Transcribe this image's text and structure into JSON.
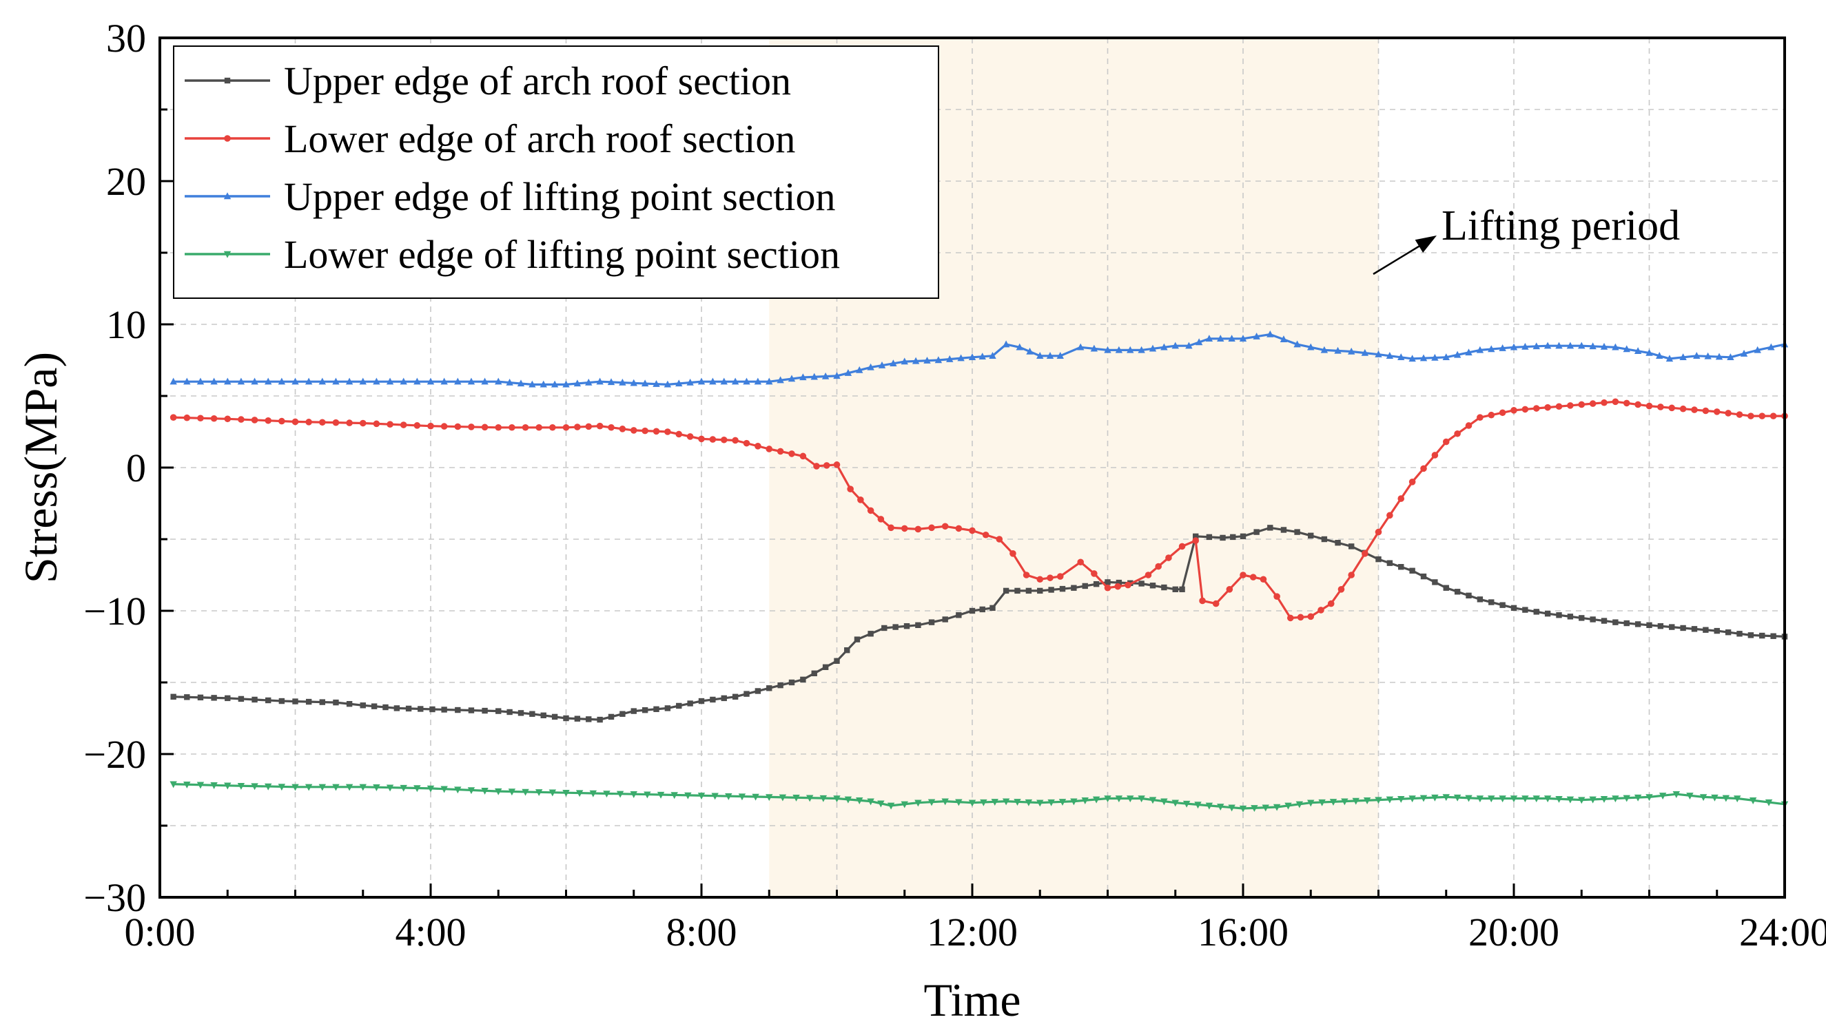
{
  "chart_data": {
    "type": "line",
    "title": "",
    "xlabel": "Time",
    "ylabel": "Stress(MPa)",
    "xlim": [
      0,
      24
    ],
    "ylim": [
      -30,
      30
    ],
    "x_ticks": [
      {
        "value": 0,
        "label": "0:00"
      },
      {
        "value": 4,
        "label": "4:00"
      },
      {
        "value": 8,
        "label": "8:00"
      },
      {
        "value": 12,
        "label": "12:00"
      },
      {
        "value": 16,
        "label": "16:00"
      },
      {
        "value": 20,
        "label": "20:00"
      },
      {
        "value": 24,
        "label": "24:00"
      }
    ],
    "y_ticks": [
      {
        "value": 30,
        "label": "30"
      },
      {
        "value": 20,
        "label": "20"
      },
      {
        "value": 10,
        "label": "10"
      },
      {
        "value": 0,
        "label": "0"
      },
      {
        "value": -10,
        "label": "−10"
      },
      {
        "value": -20,
        "label": "−20"
      },
      {
        "value": -30,
        "label": "−30"
      }
    ],
    "grid": true,
    "legend_position": "top-left",
    "shaded_region": {
      "x_start": 9.0,
      "x_end": 18.0,
      "color": "#fdf6ea"
    },
    "annotation": {
      "text": "Lifting period",
      "color": "#000000"
    },
    "series": [
      {
        "name": "Upper edge of arch roof section",
        "color": "#4d4d4d",
        "marker": "square",
        "points": [
          [
            0.2,
            -16.0
          ],
          [
            1.0,
            -16.1
          ],
          [
            1.8,
            -16.3
          ],
          [
            2.6,
            -16.4
          ],
          [
            3.0,
            -16.6
          ],
          [
            3.5,
            -16.8
          ],
          [
            4.2,
            -16.9
          ],
          [
            5.0,
            -17.0
          ],
          [
            5.5,
            -17.2
          ],
          [
            6.0,
            -17.5
          ],
          [
            6.5,
            -17.6
          ],
          [
            7.0,
            -17.0
          ],
          [
            7.5,
            -16.8
          ],
          [
            8.0,
            -16.3
          ],
          [
            8.5,
            -16.0
          ],
          [
            9.0,
            -15.4
          ],
          [
            9.5,
            -14.8
          ],
          [
            10.0,
            -13.5
          ],
          [
            10.3,
            -12.0
          ],
          [
            10.7,
            -11.2
          ],
          [
            11.2,
            -11.0
          ],
          [
            11.6,
            -10.6
          ],
          [
            12.0,
            -10.0
          ],
          [
            12.3,
            -9.8
          ],
          [
            12.5,
            -8.6
          ],
          [
            13.0,
            -8.6
          ],
          [
            13.5,
            -8.4
          ],
          [
            14.0,
            -8.0
          ],
          [
            14.5,
            -8.1
          ],
          [
            15.0,
            -8.5
          ],
          [
            15.1,
            -8.5
          ],
          [
            15.3,
            -4.8
          ],
          [
            15.7,
            -4.9
          ],
          [
            16.0,
            -4.8
          ],
          [
            16.4,
            -4.2
          ],
          [
            16.8,
            -4.5
          ],
          [
            17.2,
            -5.0
          ],
          [
            17.6,
            -5.5
          ],
          [
            18.0,
            -6.4
          ],
          [
            18.5,
            -7.2
          ],
          [
            19.0,
            -8.4
          ],
          [
            19.5,
            -9.2
          ],
          [
            20.0,
            -9.8
          ],
          [
            20.5,
            -10.2
          ],
          [
            21.0,
            -10.5
          ],
          [
            21.5,
            -10.8
          ],
          [
            22.0,
            -11.0
          ],
          [
            22.5,
            -11.2
          ],
          [
            23.0,
            -11.4
          ],
          [
            23.5,
            -11.7
          ],
          [
            24.0,
            -11.8
          ]
        ]
      },
      {
        "name": "Lower edge of arch roof section",
        "color": "#e8423c",
        "marker": "circle",
        "points": [
          [
            0.2,
            3.5
          ],
          [
            1.0,
            3.4
          ],
          [
            2.0,
            3.2
          ],
          [
            3.0,
            3.1
          ],
          [
            4.0,
            2.9
          ],
          [
            5.0,
            2.8
          ],
          [
            6.0,
            2.8
          ],
          [
            6.5,
            2.9
          ],
          [
            7.0,
            2.6
          ],
          [
            7.5,
            2.5
          ],
          [
            8.0,
            2.0
          ],
          [
            8.5,
            1.9
          ],
          [
            9.0,
            1.3
          ],
          [
            9.5,
            0.8
          ],
          [
            9.7,
            0.1
          ],
          [
            10.0,
            0.2
          ],
          [
            10.2,
            -1.5
          ],
          [
            10.5,
            -3.0
          ],
          [
            10.8,
            -4.2
          ],
          [
            11.2,
            -4.3
          ],
          [
            11.6,
            -4.1
          ],
          [
            12.0,
            -4.4
          ],
          [
            12.4,
            -5.0
          ],
          [
            12.6,
            -6.0
          ],
          [
            12.8,
            -7.5
          ],
          [
            13.0,
            -7.8
          ],
          [
            13.3,
            -7.6
          ],
          [
            13.6,
            -6.6
          ],
          [
            13.8,
            -7.4
          ],
          [
            14.0,
            -8.4
          ],
          [
            14.3,
            -8.2
          ],
          [
            14.6,
            -7.5
          ],
          [
            14.9,
            -6.3
          ],
          [
            15.1,
            -5.5
          ],
          [
            15.3,
            -5.1
          ],
          [
            15.4,
            -9.3
          ],
          [
            15.6,
            -9.5
          ],
          [
            15.8,
            -8.5
          ],
          [
            16.0,
            -7.5
          ],
          [
            16.3,
            -7.8
          ],
          [
            16.5,
            -9.0
          ],
          [
            16.7,
            -10.5
          ],
          [
            17.0,
            -10.4
          ],
          [
            17.3,
            -9.5
          ],
          [
            17.6,
            -7.5
          ],
          [
            18.0,
            -4.5
          ],
          [
            18.5,
            -1.0
          ],
          [
            19.0,
            1.8
          ],
          [
            19.5,
            3.5
          ],
          [
            20.0,
            4.0
          ],
          [
            20.5,
            4.2
          ],
          [
            21.0,
            4.4
          ],
          [
            21.5,
            4.6
          ],
          [
            22.0,
            4.3
          ],
          [
            22.5,
            4.1
          ],
          [
            23.0,
            3.9
          ],
          [
            23.5,
            3.6
          ],
          [
            24.0,
            3.6
          ]
        ]
      },
      {
        "name": "Upper edge of lifting point section",
        "color": "#3f7fdc",
        "marker": "triangle-up",
        "points": [
          [
            0.2,
            6.0
          ],
          [
            2.0,
            6.0
          ],
          [
            4.0,
            6.0
          ],
          [
            5.0,
            6.0
          ],
          [
            5.5,
            5.8
          ],
          [
            6.0,
            5.8
          ],
          [
            6.5,
            6.0
          ],
          [
            7.0,
            5.9
          ],
          [
            7.5,
            5.8
          ],
          [
            8.0,
            6.0
          ],
          [
            8.5,
            6.0
          ],
          [
            9.0,
            6.0
          ],
          [
            9.5,
            6.3
          ],
          [
            10.0,
            6.4
          ],
          [
            10.5,
            7.0
          ],
          [
            11.0,
            7.4
          ],
          [
            11.5,
            7.5
          ],
          [
            12.0,
            7.7
          ],
          [
            12.3,
            7.8
          ],
          [
            12.5,
            8.6
          ],
          [
            12.7,
            8.4
          ],
          [
            13.0,
            7.8
          ],
          [
            13.3,
            7.8
          ],
          [
            13.6,
            8.4
          ],
          [
            14.0,
            8.2
          ],
          [
            14.5,
            8.2
          ],
          [
            15.0,
            8.5
          ],
          [
            15.2,
            8.5
          ],
          [
            15.5,
            9.0
          ],
          [
            16.0,
            9.0
          ],
          [
            16.4,
            9.3
          ],
          [
            16.8,
            8.6
          ],
          [
            17.2,
            8.2
          ],
          [
            17.6,
            8.1
          ],
          [
            18.0,
            7.9
          ],
          [
            18.5,
            7.6
          ],
          [
            19.0,
            7.7
          ],
          [
            19.5,
            8.2
          ],
          [
            20.0,
            8.4
          ],
          [
            20.5,
            8.5
          ],
          [
            21.0,
            8.5
          ],
          [
            21.5,
            8.4
          ],
          [
            22.0,
            8.0
          ],
          [
            22.3,
            7.6
          ],
          [
            22.7,
            7.8
          ],
          [
            23.2,
            7.7
          ],
          [
            23.6,
            8.2
          ],
          [
            24.0,
            8.6
          ]
        ]
      },
      {
        "name": "Lower edge of lifting point section",
        "color": "#3aab6c",
        "marker": "triangle-down",
        "points": [
          [
            0.2,
            -22.1
          ],
          [
            1.0,
            -22.2
          ],
          [
            2.0,
            -22.3
          ],
          [
            3.0,
            -22.3
          ],
          [
            4.0,
            -22.4
          ],
          [
            5.0,
            -22.6
          ],
          [
            6.0,
            -22.7
          ],
          [
            7.0,
            -22.8
          ],
          [
            8.0,
            -22.9
          ],
          [
            9.0,
            -23.0
          ],
          [
            10.0,
            -23.1
          ],
          [
            10.5,
            -23.3
          ],
          [
            10.8,
            -23.6
          ],
          [
            11.2,
            -23.4
          ],
          [
            11.6,
            -23.3
          ],
          [
            12.0,
            -23.4
          ],
          [
            12.5,
            -23.3
          ],
          [
            13.0,
            -23.4
          ],
          [
            13.5,
            -23.3
          ],
          [
            14.0,
            -23.1
          ],
          [
            14.5,
            -23.1
          ],
          [
            15.0,
            -23.4
          ],
          [
            15.5,
            -23.6
          ],
          [
            16.0,
            -23.8
          ],
          [
            16.5,
            -23.7
          ],
          [
            17.0,
            -23.4
          ],
          [
            17.5,
            -23.3
          ],
          [
            18.0,
            -23.2
          ],
          [
            18.5,
            -23.1
          ],
          [
            19.0,
            -23.0
          ],
          [
            19.5,
            -23.1
          ],
          [
            20.0,
            -23.1
          ],
          [
            20.5,
            -23.1
          ],
          [
            21.0,
            -23.2
          ],
          [
            21.5,
            -23.1
          ],
          [
            22.0,
            -23.0
          ],
          [
            22.4,
            -22.8
          ],
          [
            22.8,
            -23.0
          ],
          [
            23.3,
            -23.1
          ],
          [
            24.0,
            -23.5
          ]
        ]
      }
    ]
  }
}
